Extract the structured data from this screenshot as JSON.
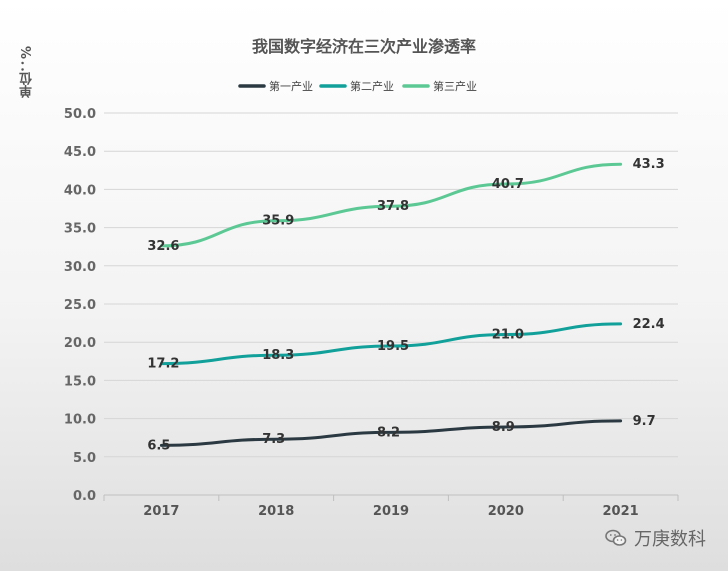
{
  "chart_data": {
    "type": "line",
    "title": "我国数字经济在三次产业渗透率",
    "ylabel": "单位：%",
    "xlabel": "",
    "categories": [
      "2017",
      "2018",
      "2019",
      "2020",
      "2021"
    ],
    "ylim": [
      0,
      50
    ],
    "yticks": [
      "0.0",
      "5.0",
      "10.0",
      "15.0",
      "20.0",
      "25.0",
      "30.0",
      "35.0",
      "40.0",
      "45.0",
      "50.0"
    ],
    "grid": true,
    "legend_position": "top-center",
    "series": [
      {
        "name": "第一产业",
        "color": "#2b3a42",
        "values": [
          6.5,
          7.3,
          8.2,
          8.9,
          9.7
        ],
        "labels": [
          "6.5",
          "7.3",
          "8.2",
          "8.9",
          "9.7"
        ]
      },
      {
        "name": "第二产业",
        "color": "#12a09a",
        "values": [
          17.2,
          18.3,
          19.5,
          21.0,
          22.4
        ],
        "labels": [
          "17.2",
          "18.3",
          "19.5",
          "21.0",
          "22.4"
        ]
      },
      {
        "name": "第三产业",
        "color": "#5cc995",
        "values": [
          32.6,
          35.9,
          37.8,
          40.7,
          43.3
        ],
        "labels": [
          "32.6",
          "35.9",
          "37.8",
          "40.7",
          "43.3"
        ]
      }
    ]
  },
  "watermark": {
    "text": "万庚数科",
    "icon": "wechat-icon"
  }
}
